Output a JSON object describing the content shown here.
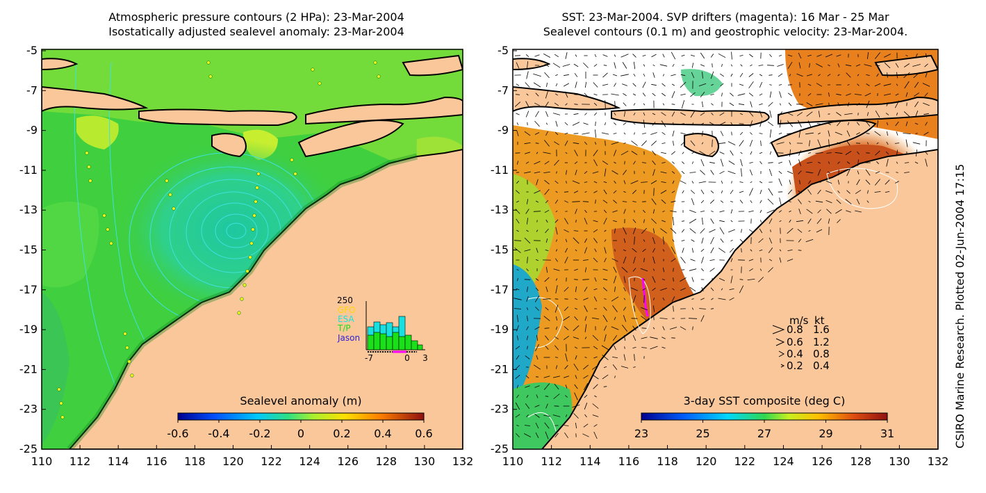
{
  "left_map": {
    "title_line1": "Atmospheric pressure contours (2 HPa): 23-Mar-2004",
    "title_line2": "Isostatically adjusted sealevel anomaly: 23-Mar-2004",
    "colorbar_label": "Sealevel anomaly (m)",
    "colorbar_ticks": [
      "-0.6",
      "-0.4",
      "-0.2",
      "0",
      "0.2",
      "0.4",
      "0.6"
    ],
    "y_ticks": [
      "-5",
      "-7",
      "-9",
      "-11",
      "-13",
      "-15",
      "-17",
      "-19",
      "-21",
      "-23",
      "-25"
    ],
    "x_ticks": [
      "110",
      "112",
      "114",
      "116",
      "118",
      "120",
      "122",
      "124",
      "126",
      "128",
      "130",
      "132"
    ],
    "histogram": {
      "ymax_label": "250",
      "legend": [
        {
          "label": "GFO",
          "color": "#ffd700"
        },
        {
          "label": "ESA",
          "color": "#19e0e0"
        },
        {
          "label": "T/P",
          "color": "#19e019"
        },
        {
          "label": "Jason",
          "color": "#2b1ed8"
        }
      ],
      "x_labels": [
        "-7",
        "0",
        "3"
      ]
    }
  },
  "right_map": {
    "title_line1": "SST: 23-Mar-2004. SVP drifters (magenta): 16 Mar - 25 Mar",
    "title_line2": "Sealevel contours (0.1 m) and geostrophic velocity: 23-Mar-2004.",
    "colorbar_label": "3-day SST composite (deg C)",
    "colorbar_ticks": [
      "23",
      "25",
      "27",
      "29",
      "31"
    ],
    "y_ticks": [
      "-5",
      "-7",
      "-9",
      "-11",
      "-13",
      "-15",
      "-17",
      "-19",
      "-21",
      "-23",
      "-25"
    ],
    "x_ticks": [
      "110",
      "112",
      "114",
      "116",
      "118",
      "120",
      "122",
      "124",
      "126",
      "128",
      "130",
      "132"
    ],
    "velocity_legend": {
      "header_ms": "m/s",
      "header_kt": "kt",
      "rows": [
        {
          "ms": "0.8",
          "kt": "1.6"
        },
        {
          "ms": "0.6",
          "kt": "1.2"
        },
        {
          "ms": "0.4",
          "kt": "0.8"
        },
        {
          "ms": "0.2",
          "kt": "0.4"
        }
      ]
    }
  },
  "credit": "CSIRO Marine Research. Plotted 02-Jun-2004 17:15",
  "colors": {
    "land": "#fac79a",
    "ocean_green": "#3fcf3f",
    "contour_cyan": "#3fe0e0",
    "drifter_magenta": "#ff00ff"
  }
}
